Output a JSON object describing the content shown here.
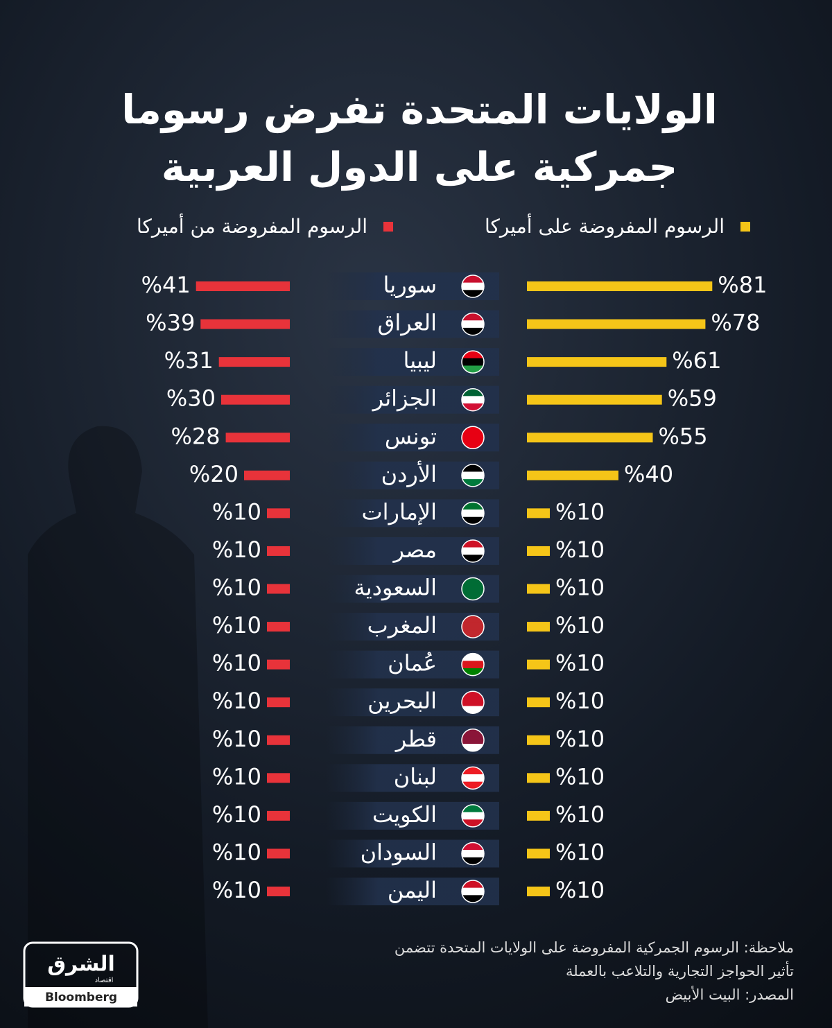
{
  "chart_data": {
    "type": "bar",
    "title": [
      "الولايات المتحدة تفرض رسوما",
      "جمركية على الدول العربية"
    ],
    "categories": [
      "سوريا",
      "العراق",
      "ليبيا",
      "الجزائر",
      "تونس",
      "الأردن",
      "الإمارات",
      "مصر",
      "السعودية",
      "المغرب",
      "عُمان",
      "البحرين",
      "قطر",
      "لبنان",
      "الكويت",
      "السودان",
      "اليمن"
    ],
    "series": [
      {
        "name": "الرسوم المفروضة على أميركا",
        "color": "#f5c518",
        "values": [
          81,
          78,
          61,
          59,
          55,
          40,
          10,
          10,
          10,
          10,
          10,
          10,
          10,
          10,
          10,
          10,
          10
        ],
        "value_labels": [
          "%81",
          "%78",
          "%61",
          "%59",
          "%55",
          "%40",
          "%10",
          "%10",
          "%10",
          "%10",
          "%10",
          "%10",
          "%10",
          "%10",
          "%10",
          "%10",
          "%10"
        ]
      },
      {
        "name": "الرسوم المفروضة من أميركا",
        "color": "#e8333a",
        "values": [
          41,
          39,
          31,
          30,
          28,
          20,
          10,
          10,
          10,
          10,
          10,
          10,
          10,
          10,
          10,
          10,
          10
        ],
        "value_labels": [
          "%41",
          "%39",
          "%31",
          "%30",
          "%28",
          "%20",
          "%10",
          "%10",
          "%10",
          "%10",
          "%10",
          "%10",
          "%10",
          "%10",
          "%10",
          "%10",
          "%10"
        ]
      }
    ],
    "note": [
      "ملاحظة: الرسوم الجمركية المفروضة على الولايات المتحدة تتضمن",
      "تأثير الحواجز التجارية والتلاعب بالعملة"
    ],
    "source": "المصدر: البيت الأبيض",
    "logo": {
      "name": "الشرق",
      "sub": "اقتصاد",
      "partner": "Bloomberg"
    }
  }
}
